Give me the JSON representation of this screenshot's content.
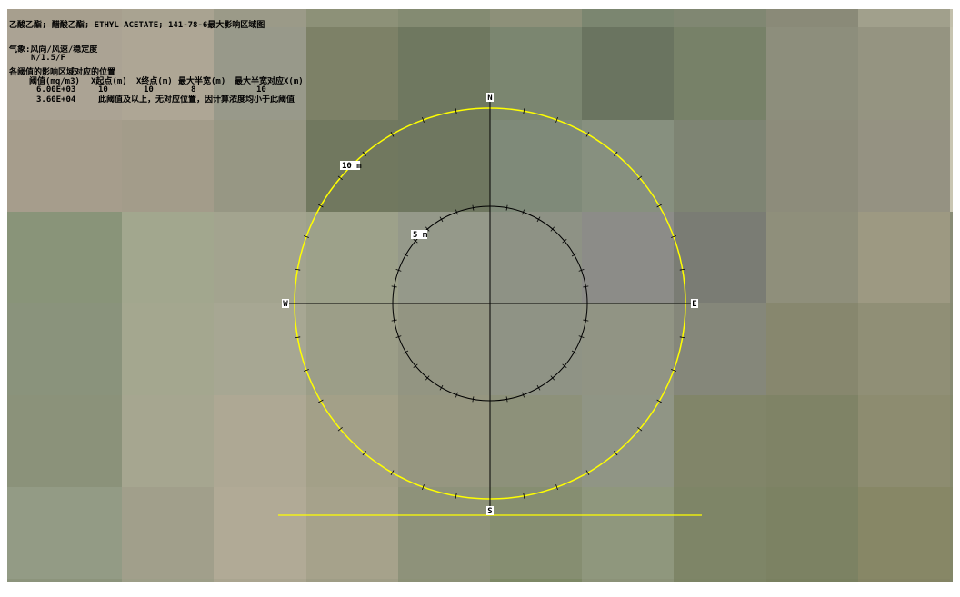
{
  "header": {
    "title": "乙酸乙酯; 醋酸乙酯; ETHYL ACETATE; 141-78-6最大影响区域图"
  },
  "weather": {
    "label": "气象:风向/风速/稳定度",
    "value": "N/1.5/F"
  },
  "table": {
    "caption": "各阈值的影响区域对应的位置",
    "header": [
      "阈值(mg/m3)",
      "X起点(m)",
      "X终点(m)",
      "最大半宽(m)",
      "最大半宽对应X(m)"
    ],
    "rows": [
      [
        "6.00E+03",
        "10",
        "10",
        "8",
        "10"
      ],
      [
        "3.60E+04",
        "此阈值及以上，无对应位置，因计算浓度均小于此阈值"
      ]
    ]
  },
  "compass": {
    "north": "N",
    "south": "S",
    "east": "E",
    "west": "W"
  },
  "rings": [
    {
      "label": "10 m"
    },
    {
      "label": "5 m"
    }
  ]
}
